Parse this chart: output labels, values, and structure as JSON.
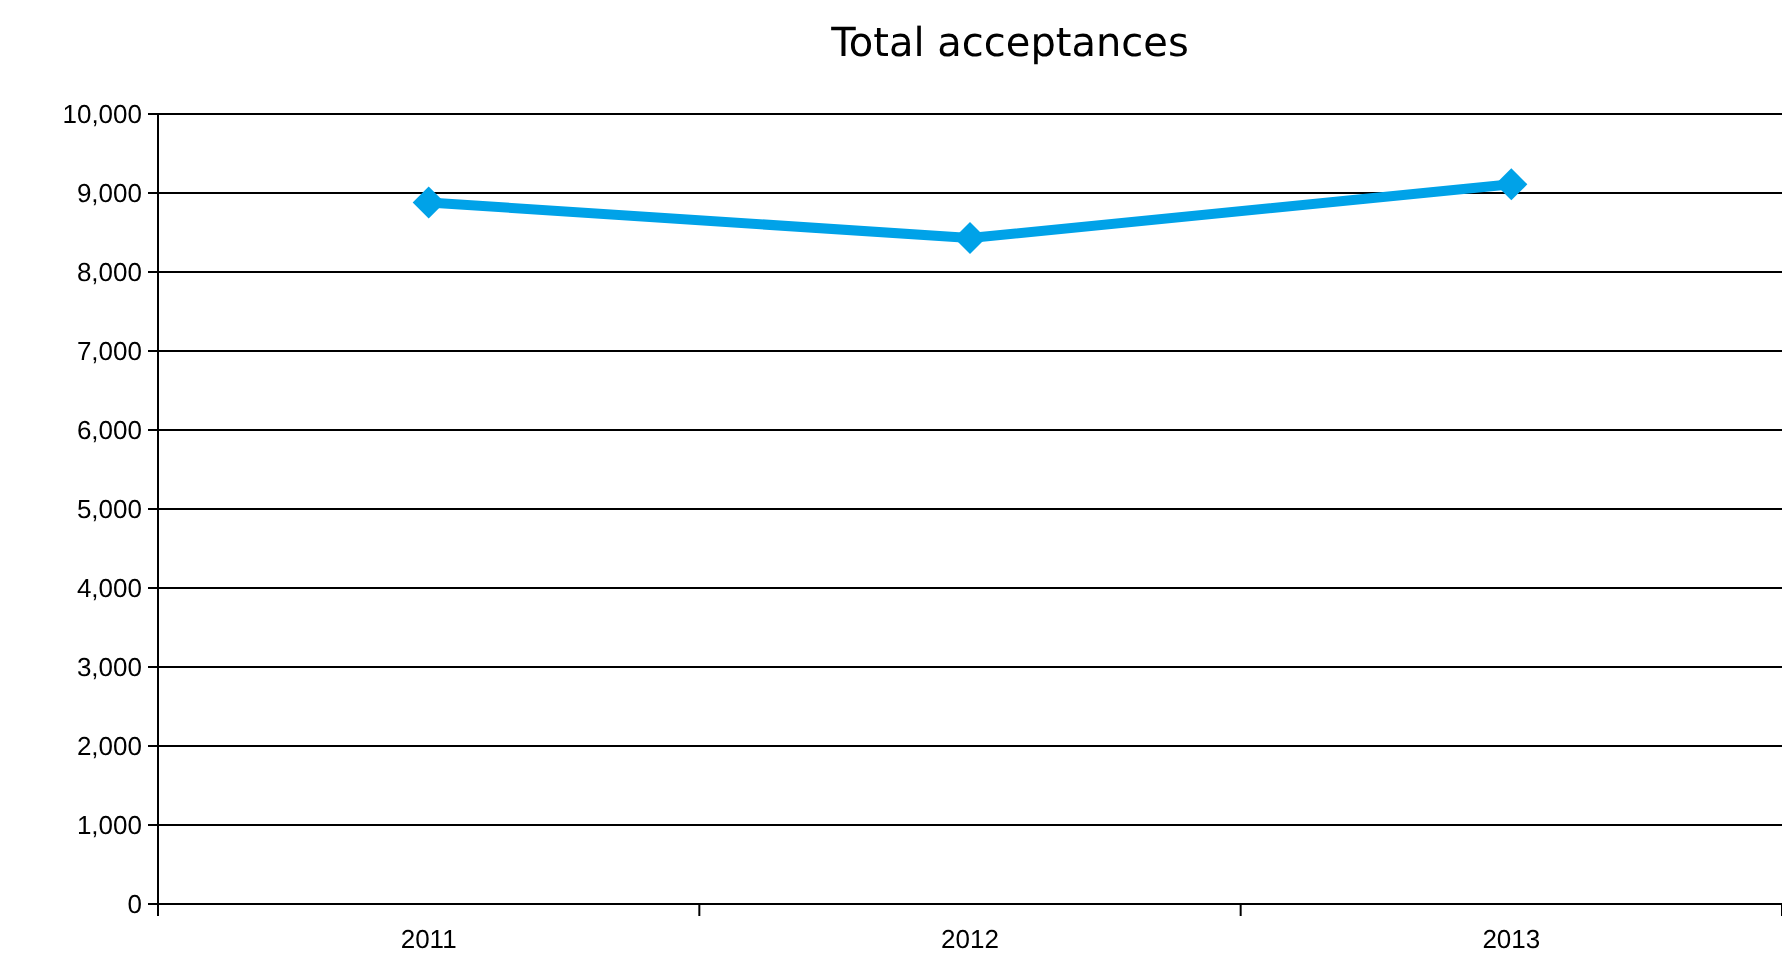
{
  "chart_data": {
    "type": "line",
    "title": "Total acceptances",
    "categories": [
      "2011",
      "2012",
      "2013"
    ],
    "series": [
      {
        "color": "#00a2e8",
        "values": [
          8880,
          8430,
          9110
        ]
      }
    ],
    "ylim": [
      0,
      10000
    ],
    "yticks": [
      {
        "value": 0,
        "label": "0"
      },
      {
        "value": 1000,
        "label": "1,000"
      },
      {
        "value": 2000,
        "label": "2,000"
      },
      {
        "value": 3000,
        "label": "3,000"
      },
      {
        "value": 4000,
        "label": "4,000"
      },
      {
        "value": 5000,
        "label": "5,000"
      },
      {
        "value": 6000,
        "label": "6,000"
      },
      {
        "value": 7000,
        "label": "7,000"
      },
      {
        "value": 8000,
        "label": "8,000"
      },
      {
        "value": 9000,
        "label": "9,000"
      },
      {
        "value": 10000,
        "label": "10,000"
      }
    ],
    "grid": "y",
    "marker": "diamond"
  }
}
